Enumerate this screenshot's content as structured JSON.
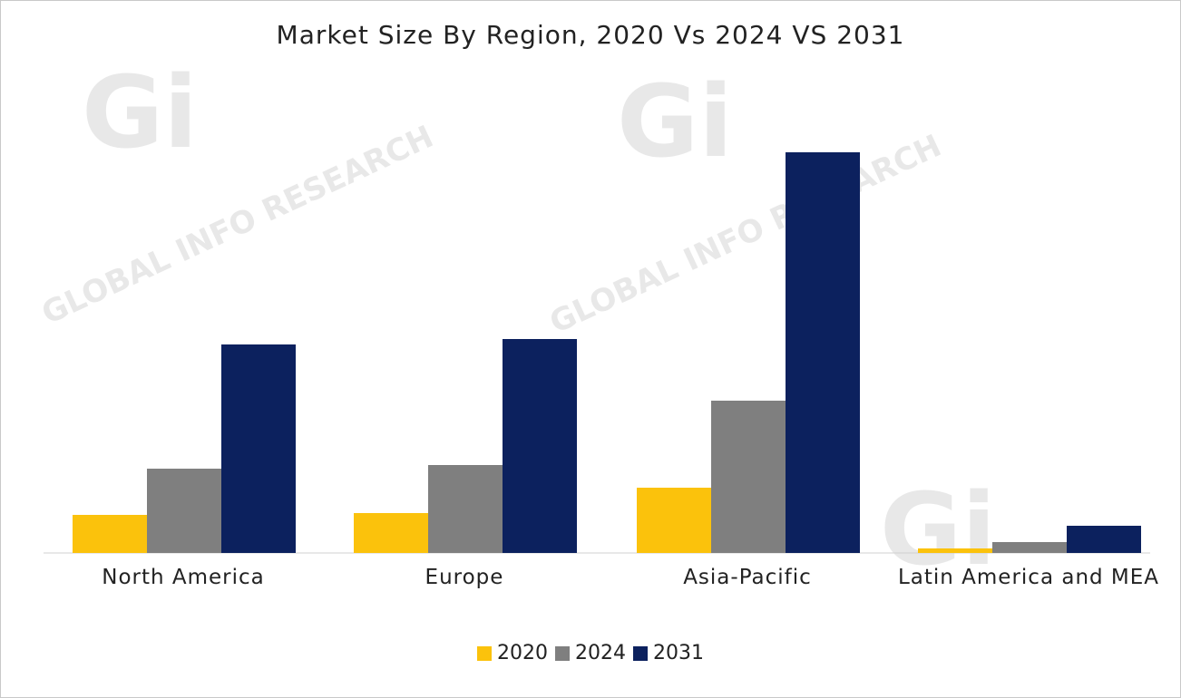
{
  "chart_data": {
    "type": "bar",
    "title": "Market Size By Region, 2020 Vs 2024 VS 2031",
    "categories": [
      "North America",
      "Europe",
      "Asia-Pacific",
      "Latin America and MEA"
    ],
    "series": [
      {
        "name": "2020",
        "color": "#fbc20c",
        "values": [
          42,
          44,
          72,
          5
        ]
      },
      {
        "name": "2024",
        "color": "#7f7f7f",
        "values": [
          93,
          97,
          168,
          12
        ]
      },
      {
        "name": "2031",
        "color": "#0c215e",
        "values": [
          230,
          236,
          442,
          30
        ]
      }
    ],
    "ylim": [
      0,
      460
    ],
    "xlabel": "",
    "ylabel": "",
    "grid": false,
    "legend": "bottom"
  },
  "watermark": {
    "logo": "Gi",
    "text": "GLOBAL INFO RESEARCH"
  }
}
